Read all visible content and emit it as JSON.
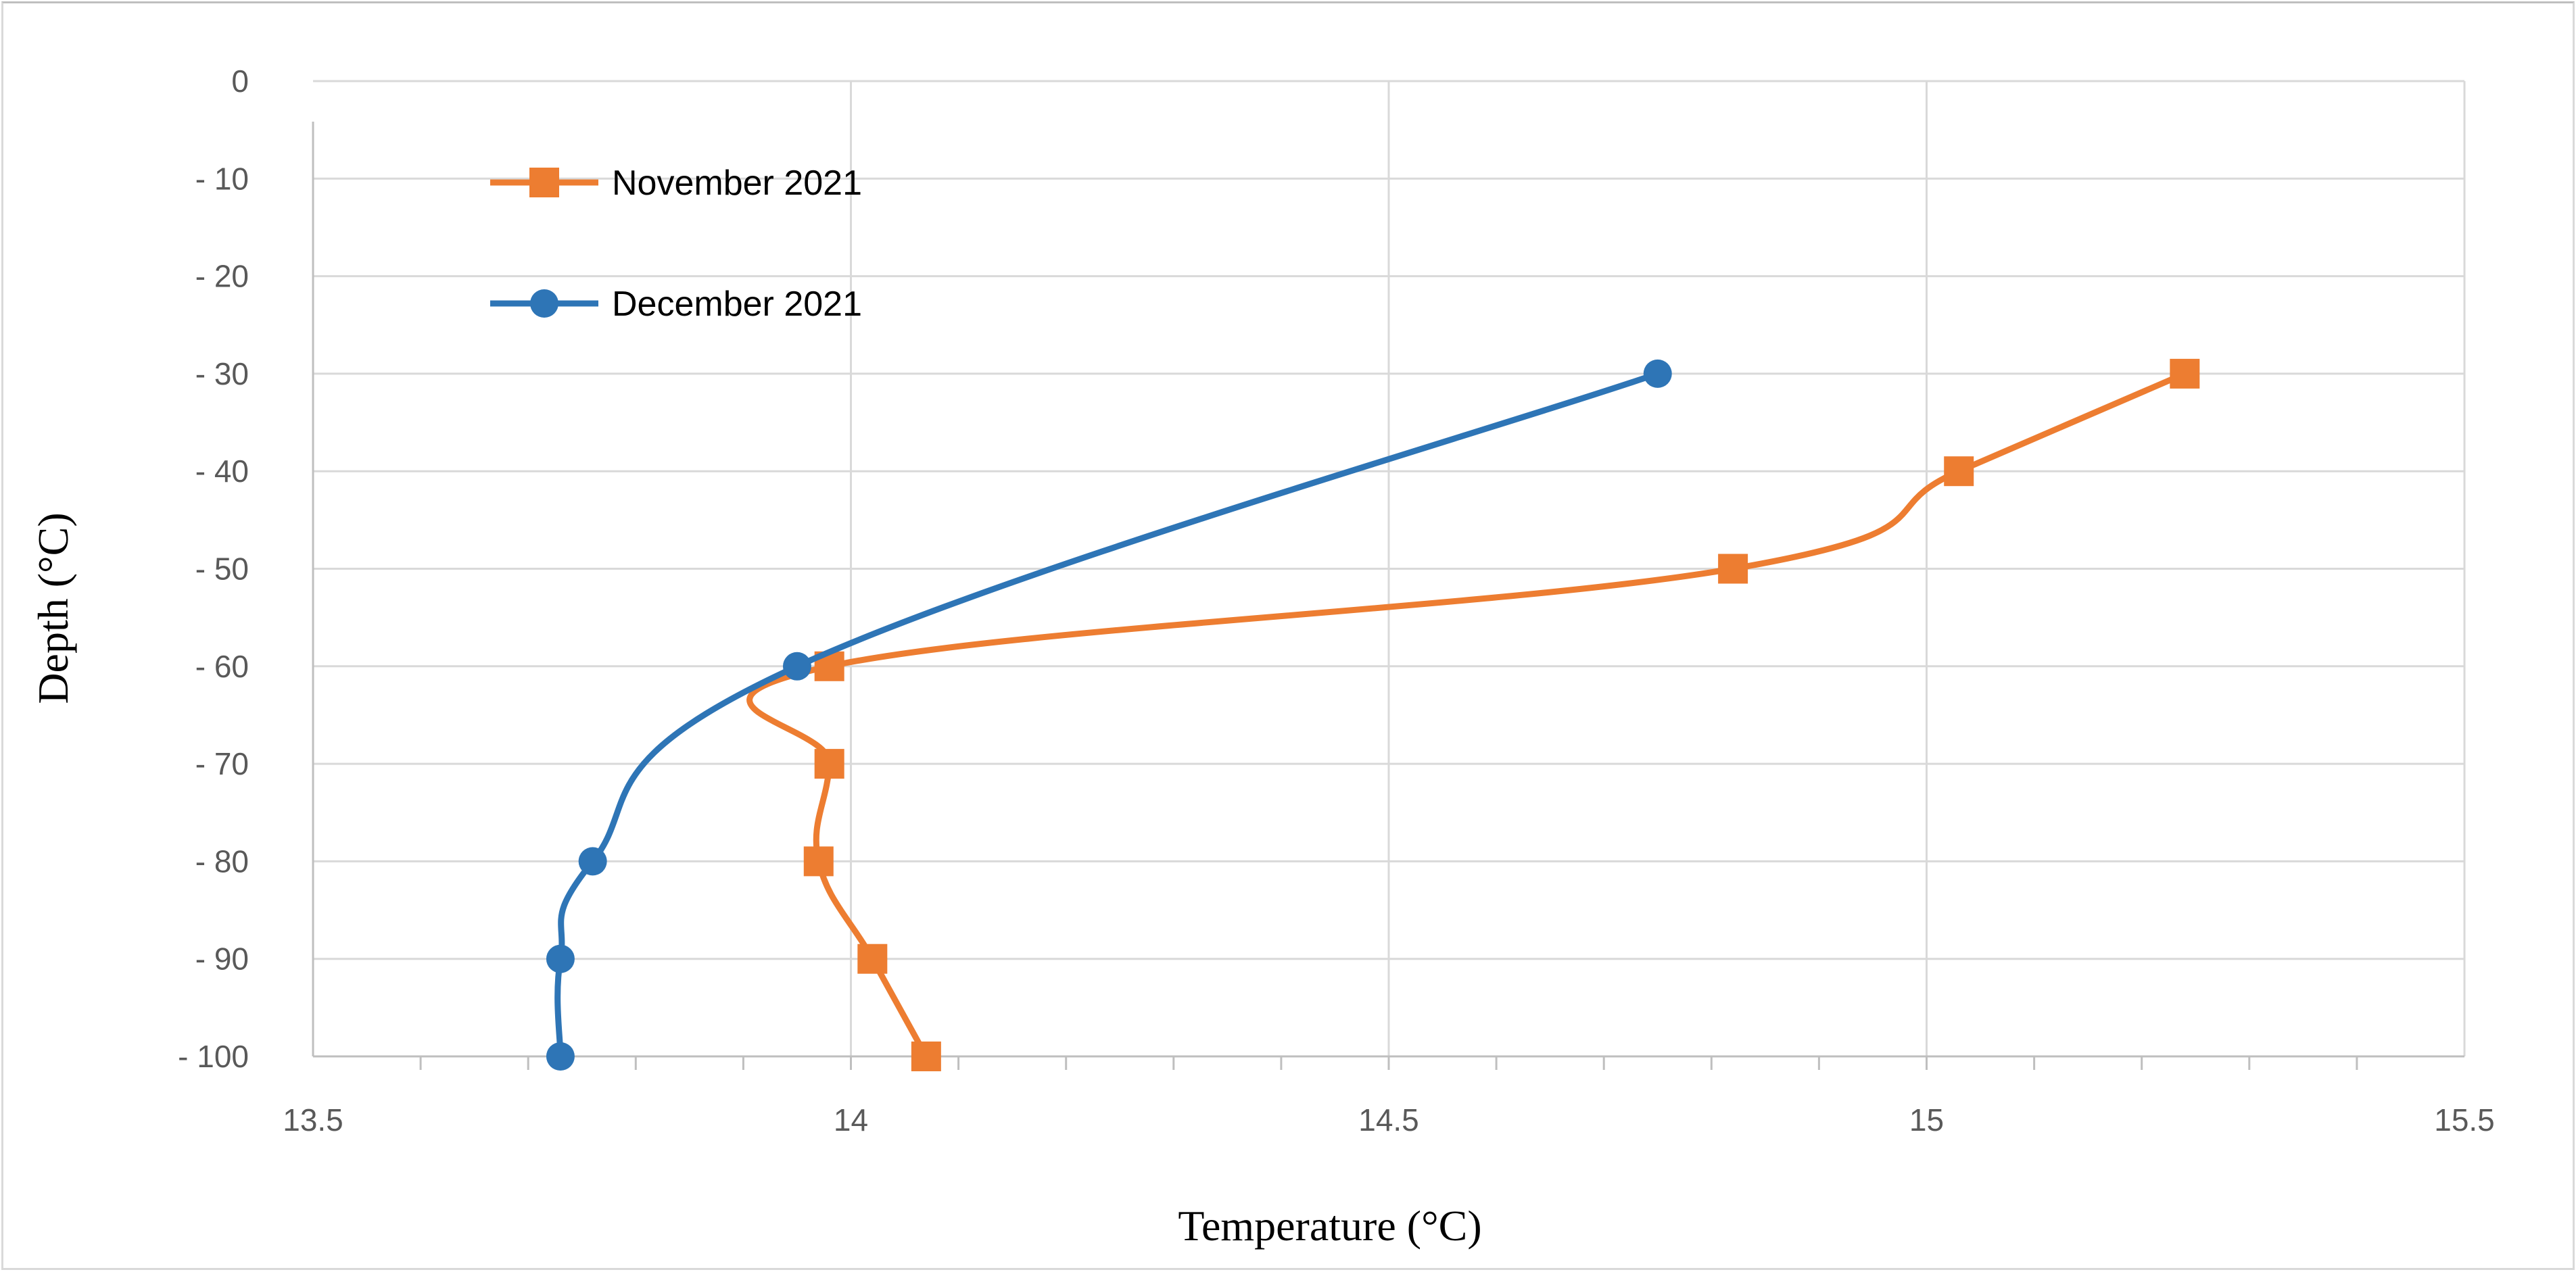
{
  "chart_data": {
    "type": "line",
    "title": "",
    "xlabel": "Temperature (°C)",
    "ylabel": "Depth (°C)",
    "xlim": [
      13.5,
      15.5
    ],
    "ylim": [
      -100,
      0
    ],
    "x_ticks": [
      13.5,
      14,
      14.5,
      15,
      15.5
    ],
    "x_tick_labels": [
      "13.5",
      "14",
      "14.5",
      "15",
      "15.5"
    ],
    "y_ticks": [
      0,
      -10,
      -20,
      -30,
      -40,
      -50,
      -60,
      -70,
      -80,
      -90,
      -100
    ],
    "y_tick_labels": [
      "0",
      "- 10",
      "- 20",
      "- 30",
      "- 40",
      "- 50",
      "- 60",
      "- 70",
      "- 80",
      "- 90",
      "- 100"
    ],
    "grid": true,
    "legend_position": "top-left",
    "series": [
      {
        "name": "November 2021",
        "color": "#ED7D31",
        "marker": "square",
        "points": [
          {
            "x": 15.24,
            "y": -30
          },
          {
            "x": 15.03,
            "y": -40
          },
          {
            "x": 14.82,
            "y": -50
          },
          {
            "x": 13.98,
            "y": -60
          },
          {
            "x": 13.98,
            "y": -70
          },
          {
            "x": 13.97,
            "y": -80
          },
          {
            "x": 14.02,
            "y": -90
          },
          {
            "x": 14.07,
            "y": -100
          }
        ]
      },
      {
        "name": "December 2021",
        "color": "#2E75B6",
        "marker": "circle",
        "points": [
          {
            "x": 14.75,
            "y": -30
          },
          {
            "x": 13.95,
            "y": -60
          },
          {
            "x": 13.76,
            "y": -80
          },
          {
            "x": 13.73,
            "y": -90
          },
          {
            "x": 13.73,
            "y": -100
          }
        ]
      }
    ]
  }
}
